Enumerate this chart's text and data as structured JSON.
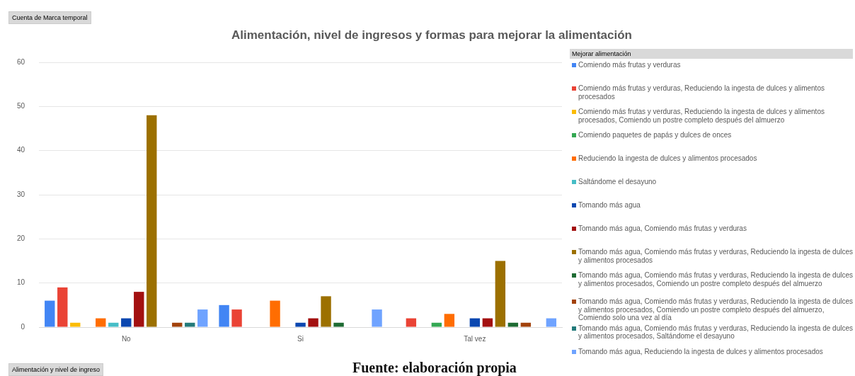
{
  "chart_data": {
    "type": "bar",
    "title": "Alimentación, nivel de ingresos y formas para mejorar la alimentación",
    "xlabel": "Alimentación y nivel de ingreso",
    "legend_title": "Mejorar alimentación",
    "annotations": [
      "Cuenta de Marca temporal",
      "Fuente: elaboración propia"
    ],
    "categories": [
      "No",
      "Si",
      "Tal vez"
    ],
    "series": [
      {
        "name": "Comiendo más frutas y verduras",
        "color": "#4285f4",
        "values": [
          6,
          5,
          null
        ]
      },
      {
        "name": "Comiendo más frutas y verduras, Reduciendo la ingesta de dulces y alimentos procesados",
        "color": "#ea4335",
        "values": [
          9,
          4,
          2
        ]
      },
      {
        "name": "Comiendo más frutas y verduras, Reduciendo la ingesta de dulces y alimentos procesados, Comiendo un postre completo después del almuerzo",
        "color": "#fbbc04",
        "values": [
          1,
          null,
          null
        ]
      },
      {
        "name": "Comiendo paquetes de papás y dulces de onces",
        "color": "#34a853",
        "values": [
          null,
          null,
          1
        ]
      },
      {
        "name": "Reduciendo la ingesta de dulces y alimentos procesados",
        "color": "#ff6d01",
        "values": [
          2,
          6,
          3
        ]
      },
      {
        "name": "Saltándome el desayuno",
        "color": "#46bdc6",
        "values": [
          1,
          null,
          null
        ]
      },
      {
        "name": "Tomando más agua",
        "color": "#0b47b0",
        "values": [
          2,
          1,
          2
        ]
      },
      {
        "name": "Tomando más agua, Comiendo más frutas y verduras",
        "color": "#a31010",
        "values": [
          8,
          2,
          2
        ]
      },
      {
        "name": "Tomando más agua, Comiendo más frutas y verduras, Reduciendo la ingesta de dulces y alimentos procesados",
        "color": "#9c7000",
        "values": [
          48,
          7,
          15
        ]
      },
      {
        "name": "Tomando más agua, Comiendo más frutas y verduras, Reduciendo la ingesta de dulces y alimentos procesados, Comiendo un postre completo después del almuerzo",
        "color": "#1e6b33",
        "values": [
          null,
          1,
          1
        ]
      },
      {
        "name": "Tomando más agua, Comiendo más frutas y verduras, Reduciendo la ingesta de dulces y alimentos procesados, Comiendo un postre completo después del almuerzo, Comiendo solo una vez al día",
        "color": "#a2420b",
        "values": [
          1,
          null,
          1
        ]
      },
      {
        "name": "Tomando más agua, Comiendo más frutas y verduras, Reduciendo la ingesta de dulces y alimentos procesados, Saltándome el desayuno",
        "color": "#237a7a",
        "values": [
          1,
          null,
          null
        ]
      },
      {
        "name": "Tomando más agua, Reduciendo la ingesta de dulces y alimentos procesados",
        "color": "#6fa3ff",
        "values": [
          4,
          4,
          2
        ]
      }
    ],
    "ylim": [
      0,
      60
    ],
    "yticks": [
      0,
      10,
      20,
      30,
      40,
      50,
      60
    ],
    "grid": "y",
    "legend": "right"
  }
}
